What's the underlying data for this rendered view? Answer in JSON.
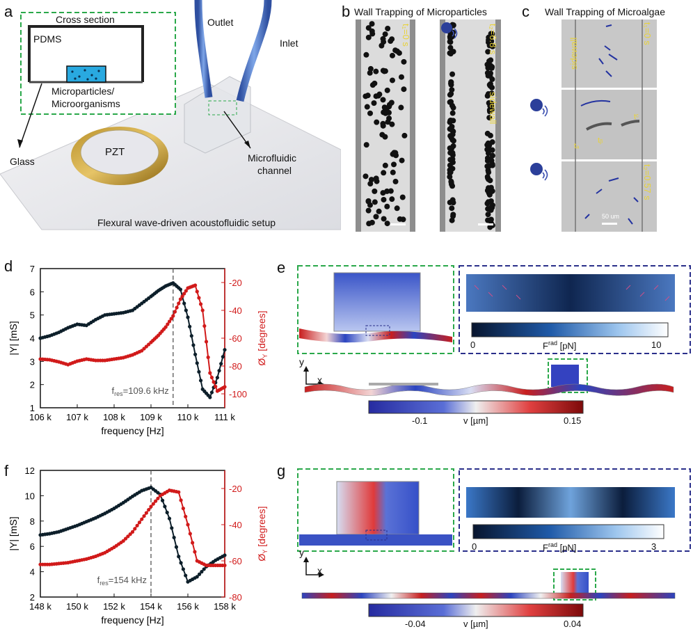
{
  "panel_labels": {
    "a": "a",
    "b": "b",
    "c": "c",
    "d": "d",
    "e": "e",
    "f": "f",
    "g": "g"
  },
  "panel_a": {
    "inset_title": "Cross section",
    "pdms": "PDMS",
    "micro": "Microparticles/",
    "organisms": "Microorganisms",
    "glass": "Glass",
    "pzt": "PZT",
    "outlet": "Outlet",
    "inlet": "Inlet",
    "channel_line1": "Microfluidic",
    "channel_line2": "channel",
    "caption": "Flexural wave-driven acoustofluidic setup"
  },
  "panel_b": {
    "title": "Wall Trapping of Microparticles",
    "t1": "t₁=0 s",
    "t2": "t₂=6.8 s",
    "sidewall": "sidewall"
  },
  "panel_c": {
    "title": "Wall Trapping of Microalgae",
    "t1": "t₁=0 s",
    "t2": "t₂=0.57 s",
    "sidewall": "sidewall",
    "scale": "50 um",
    "ta": "tₐ",
    "tb": "tᵦ",
    "tc": "tᶜ"
  },
  "panel_e": {
    "cbar_top_min": "0",
    "cbar_top_label": "F",
    "cbar_top_sup": "rad",
    "cbar_top_unit": " [pN]",
    "cbar_top_max": "10",
    "cbar_v_min": "-0.1",
    "cbar_v_label": "v [µm]",
    "cbar_v_max": "0.15",
    "axis_y": "y",
    "axis_x": "x"
  },
  "panel_g": {
    "cbar_top_min": "0",
    "cbar_top_label": "F",
    "cbar_top_sup": "rad",
    "cbar_top_unit": " [pN]",
    "cbar_top_max": "3",
    "cbar_v_min": "-0.04",
    "cbar_v_label": "v [µm]",
    "cbar_v_max": "0.04",
    "axis_y": "y",
    "axis_x": "x"
  },
  "colors": {
    "black_series": "#0d1f2a",
    "red_series": "#d11a1a",
    "green_dash": "#2aa84a",
    "blue_dash": "#2a2f8a"
  },
  "chart_data": [
    {
      "id": "d",
      "type": "line",
      "xlabel": "frequency [Hz]",
      "ylabel_left": "|Y| [mS]",
      "ylabel_right": "Ø",
      "ylabel_right_sub": "Y",
      "ylabel_right_unit": " [degrees]",
      "xlim": [
        106000,
        111000
      ],
      "ylim_left": [
        1,
        7
      ],
      "ylim_right": [
        -110,
        -10
      ],
      "x_ticks": [
        "106 k",
        "107 k",
        "108 k",
        "109 k",
        "110 k",
        "111 k"
      ],
      "y_left_ticks": [
        "1",
        "2",
        "3",
        "4",
        "5",
        "6",
        "7"
      ],
      "y_right_ticks": [
        "-100",
        "-80",
        "-60",
        "-40",
        "-20"
      ],
      "annotation": "f",
      "annotation_sub": "res",
      "annotation_rest": "=109.6 kHz",
      "vline_x": 109600,
      "series": [
        {
          "axis": "left",
          "color": "black",
          "x": [
            106000,
            106250,
            106500,
            106750,
            107000,
            107250,
            107500,
            107750,
            108000,
            108250,
            108500,
            108750,
            109000,
            109200,
            109400,
            109600,
            109800,
            110000,
            110200,
            110400,
            110600,
            110800,
            111000
          ],
          "y": [
            4.0,
            4.1,
            4.25,
            4.45,
            4.6,
            4.55,
            4.8,
            5.0,
            5.05,
            5.1,
            5.2,
            5.5,
            5.8,
            6.05,
            6.25,
            6.38,
            6.1,
            4.9,
            3.3,
            1.8,
            1.45,
            2.3,
            3.5
          ]
        },
        {
          "axis": "right",
          "color": "red",
          "x": [
            106000,
            106250,
            106500,
            106750,
            107000,
            107250,
            107500,
            107750,
            108000,
            108250,
            108500,
            108750,
            109000,
            109200,
            109400,
            109600,
            109800,
            110000,
            110200,
            110400,
            110600,
            110800,
            111000
          ],
          "y": [
            -75,
            -75.5,
            -77,
            -79,
            -76.5,
            -75,
            -76,
            -76,
            -75,
            -74,
            -72,
            -69,
            -63,
            -58,
            -52,
            -44,
            -32,
            -24,
            -22,
            -40,
            -85,
            -98,
            -95
          ]
        }
      ]
    },
    {
      "id": "f",
      "type": "line",
      "xlabel": "frequency [Hz]",
      "ylabel_left": "|Y| [mS]",
      "ylabel_right": "Ø",
      "ylabel_right_sub": "Y",
      "ylabel_right_unit": " [degrees]",
      "xlim": [
        148000,
        158000
      ],
      "ylim_left": [
        2,
        12
      ],
      "ylim_right": [
        -80,
        -10
      ],
      "x_ticks": [
        "148 k",
        "150 k",
        "152 k",
        "154 k",
        "156 k",
        "158 k"
      ],
      "y_left_ticks": [
        "2",
        "4",
        "6",
        "8",
        "10",
        "12"
      ],
      "y_right_ticks": [
        "-80",
        "-60",
        "-40",
        "-20"
      ],
      "annotation": "f",
      "annotation_sub": "res",
      "annotation_rest": "=154 kHz",
      "vline_x": 154000,
      "series": [
        {
          "axis": "left",
          "color": "black",
          "x": [
            148000,
            148500,
            149000,
            149500,
            150000,
            150500,
            151000,
            151500,
            152000,
            152500,
            153000,
            153500,
            154000,
            154500,
            155000,
            155500,
            156000,
            156500,
            157000,
            157500,
            158000
          ],
          "y": [
            6.9,
            7.0,
            7.15,
            7.4,
            7.65,
            7.95,
            8.25,
            8.6,
            9.0,
            9.45,
            9.95,
            10.4,
            10.65,
            10.1,
            8.2,
            5.2,
            3.2,
            3.6,
            4.4,
            4.9,
            5.3
          ]
        },
        {
          "axis": "right",
          "color": "red",
          "x": [
            148000,
            148500,
            149000,
            149500,
            150000,
            150500,
            151000,
            151500,
            152000,
            152500,
            153000,
            153500,
            154000,
            154500,
            155000,
            155500,
            156000,
            156500,
            157000,
            157500,
            158000
          ],
          "y": [
            -62,
            -62,
            -61.5,
            -61,
            -60,
            -59,
            -57.5,
            -55.5,
            -52.5,
            -49,
            -44,
            -37,
            -30,
            -24,
            -21,
            -22,
            -40,
            -60,
            -62.5,
            -62.5,
            -62.5
          ]
        }
      ]
    }
  ]
}
